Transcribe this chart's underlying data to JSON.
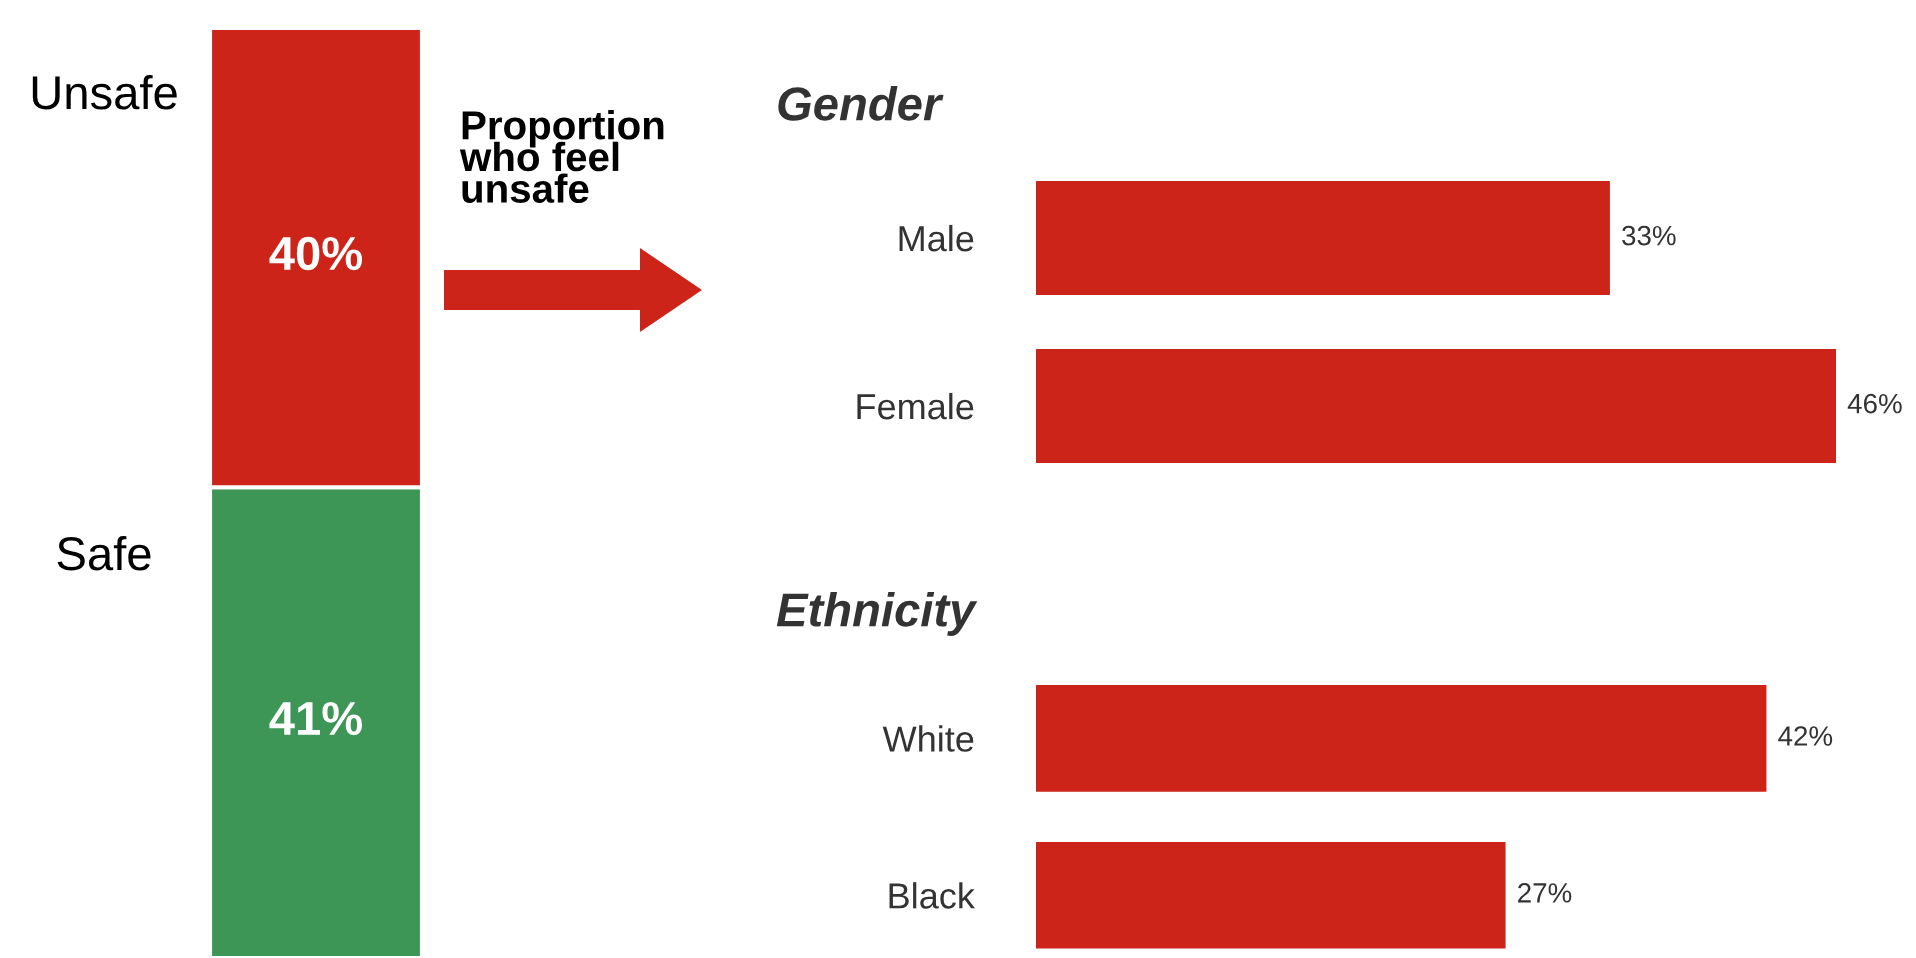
{
  "chart_data": [
    {
      "type": "bar",
      "stacked": true,
      "categories": [
        null
      ],
      "series": [
        {
          "name": "Safe",
          "color": "#3d9655",
          "values": [
            41
          ],
          "value_labels": [
            "41%"
          ]
        },
        {
          "name": "Unsafe",
          "color": "#cc2418",
          "values": [
            40
          ],
          "value_labels": [
            "40%"
          ]
        }
      ],
      "annotations": [
        "Proportion\nwho feel\nunsafe"
      ]
    },
    {
      "type": "bar",
      "orientation": "horizontal",
      "title": "Gender",
      "categories": [
        "Male",
        "Female"
      ],
      "values": [
        33,
        46
      ],
      "color": "#cc2418",
      "value_labels": [
        "33%",
        "46%"
      ]
    },
    {
      "type": "bar",
      "orientation": "horizontal",
      "title": "Ethnicity",
      "categories": [
        "White",
        "Black"
      ],
      "values": [
        42,
        27
      ],
      "color": "#cc2418",
      "value_labels": [
        "42%",
        "27%"
      ]
    }
  ]
}
